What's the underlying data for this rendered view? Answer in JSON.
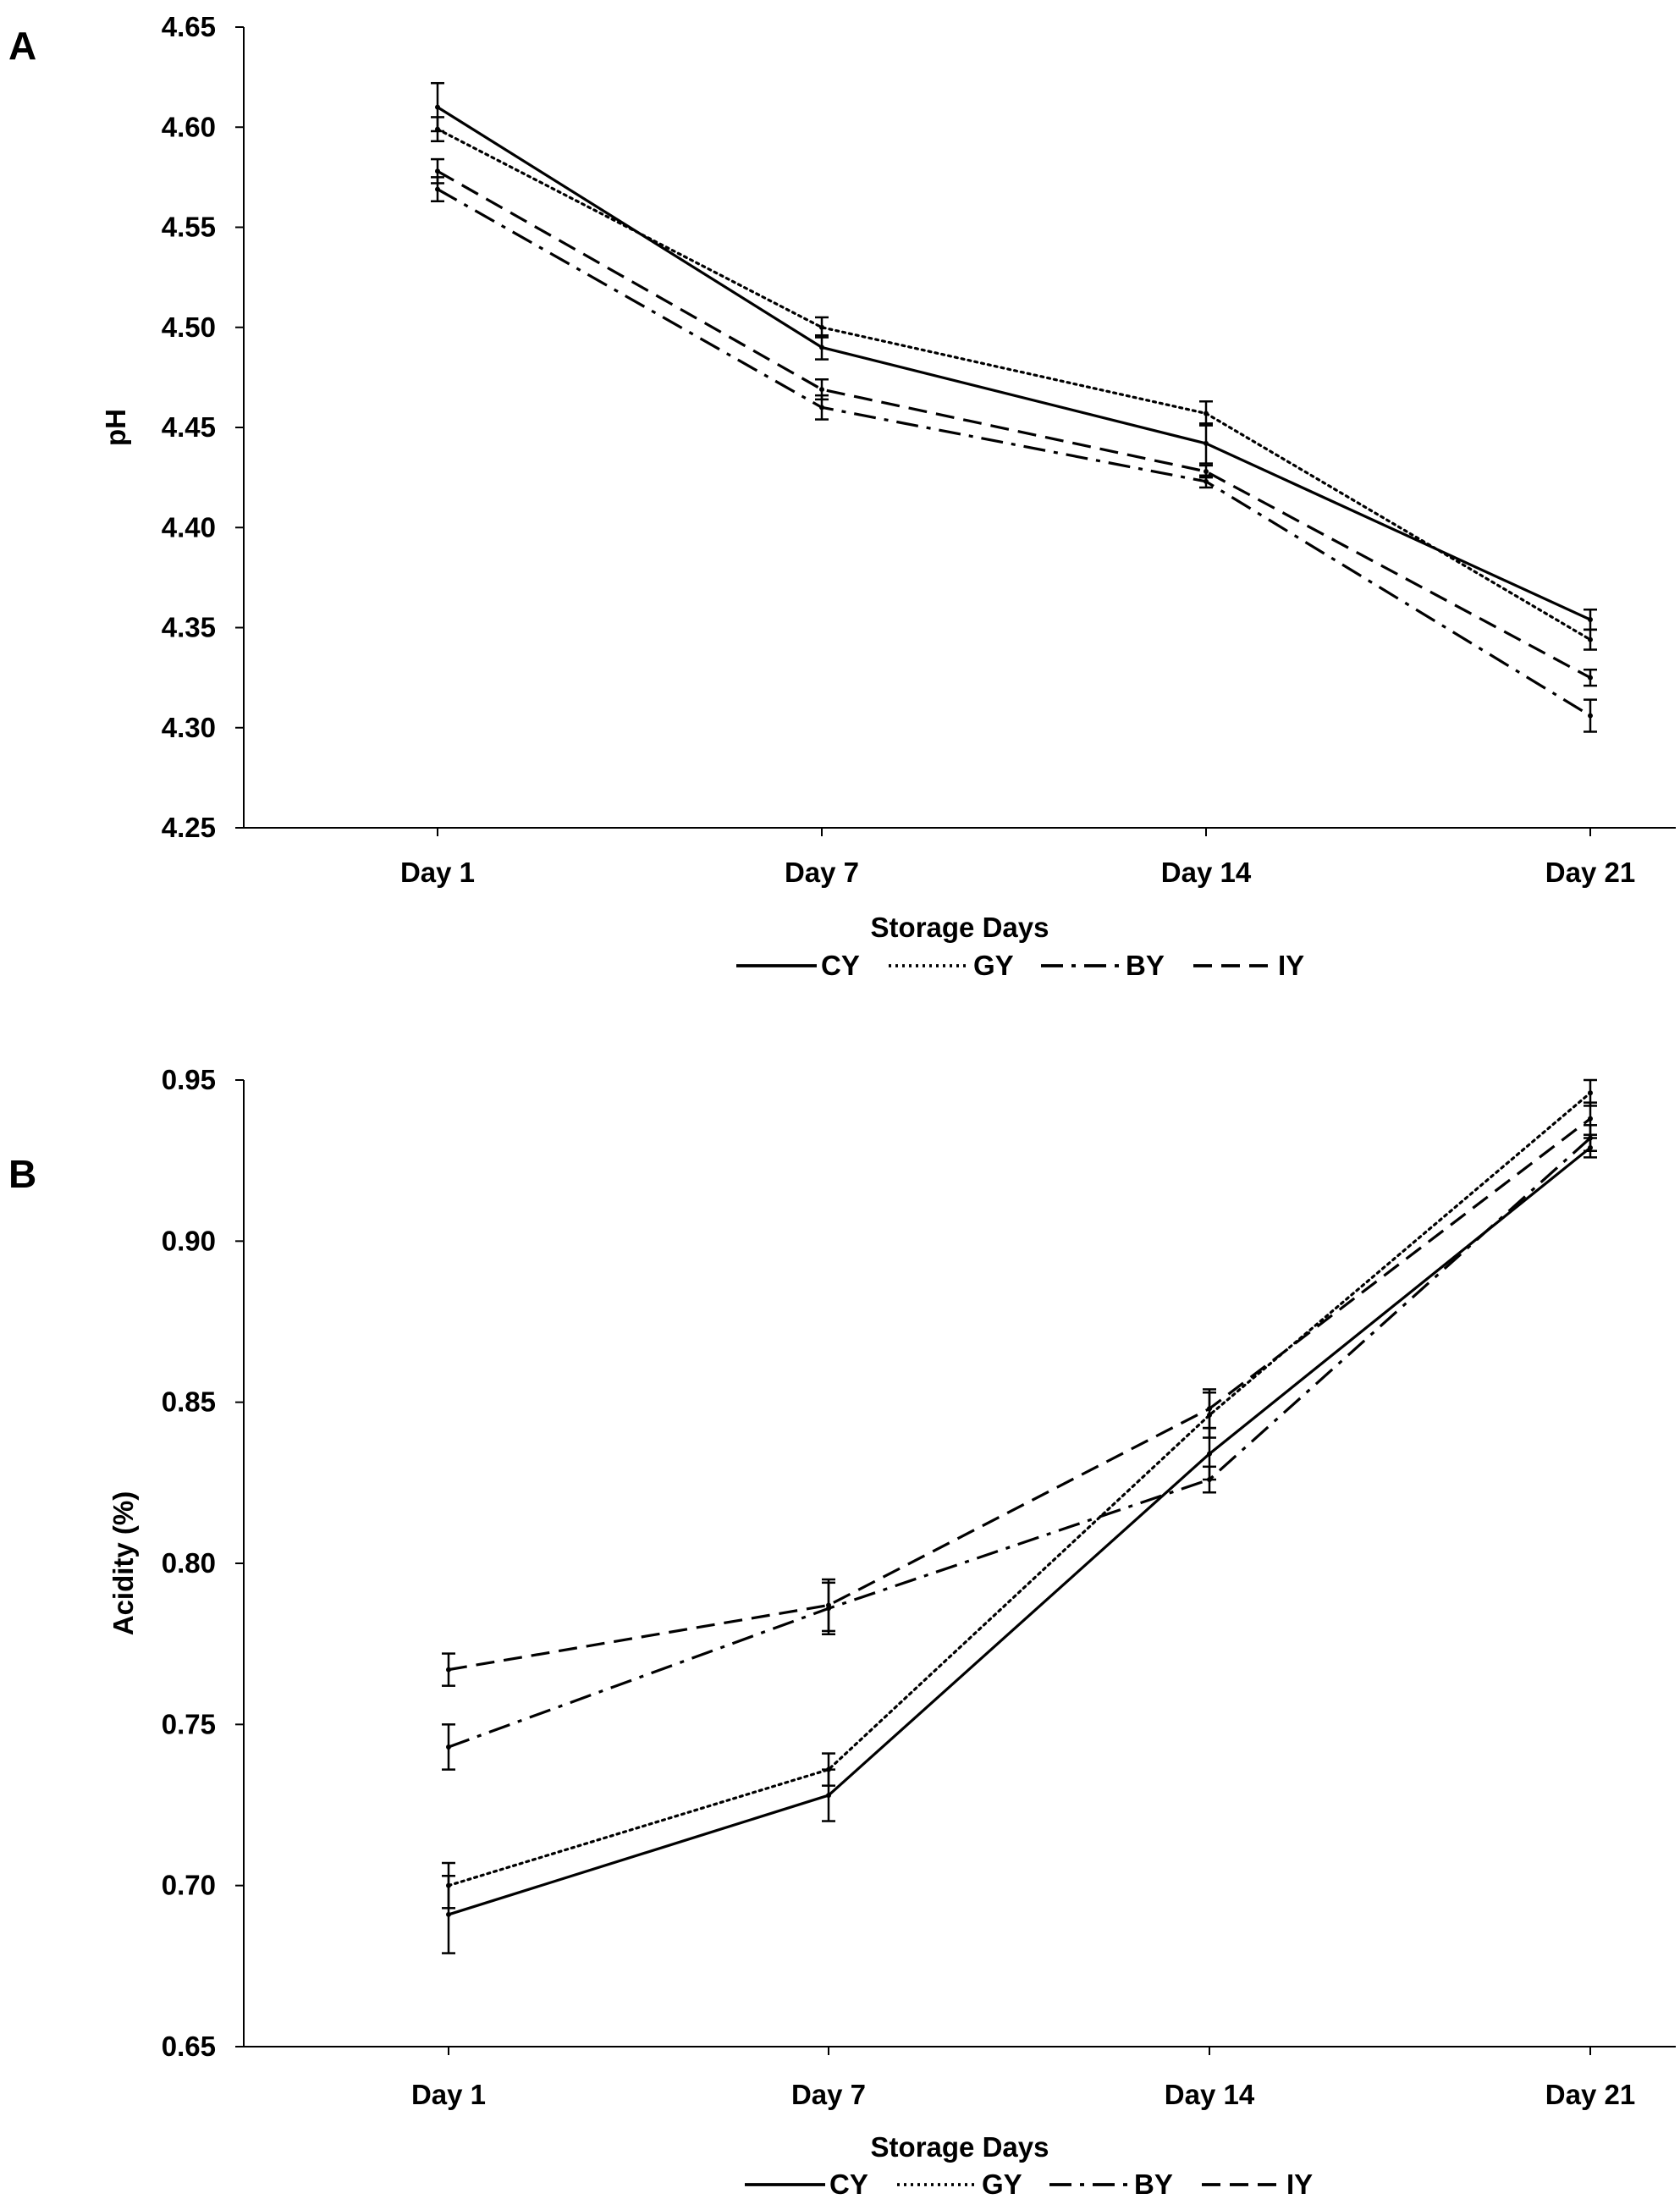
{
  "chart_data": [
    {
      "panel_label": "A",
      "type": "line",
      "title": "",
      "xlabel": "Storage Days",
      "ylabel": "pH",
      "categories": [
        "Day 1",
        "Day 7",
        "Day 14",
        "Day 21"
      ],
      "ylim": [
        4.25,
        4.65
      ],
      "yticks": [
        "4.25",
        "4.30",
        "4.35",
        "4.40",
        "4.45",
        "4.50",
        "4.55",
        "4.60",
        "4.65"
      ],
      "grid": false,
      "legend_position": "bottom",
      "error_bars": true,
      "series": [
        {
          "name": "CY",
          "style": "solid",
          "color": "#000000",
          "values": [
            4.61,
            4.49,
            4.442,
            4.354
          ],
          "errors": [
            0.012,
            0.006,
            0.01,
            0.005
          ]
        },
        {
          "name": "GY",
          "style": "dotted",
          "color": "#000000",
          "values": [
            4.599,
            4.5,
            4.457,
            4.344
          ],
          "errors": [
            0.006,
            0.005,
            0.006,
            0.005
          ]
        },
        {
          "name": "BY",
          "style": "dashdot",
          "color": "#000000",
          "values": [
            4.569,
            4.46,
            4.423,
            4.306
          ],
          "errors": [
            0.006,
            0.006,
            0.003,
            0.008
          ]
        },
        {
          "name": "IY",
          "style": "dashed",
          "color": "#000000",
          "values": [
            4.578,
            4.469,
            4.428,
            4.325
          ],
          "errors": [
            0.006,
            0.005,
            0.003,
            0.004
          ]
        }
      ]
    },
    {
      "panel_label": "B",
      "type": "line",
      "title": "",
      "xlabel": "Storage Days",
      "ylabel": "Acidity (%)",
      "categories": [
        "Day 1",
        "Day 7",
        "Day 14",
        "Day 21"
      ],
      "ylim": [
        0.65,
        0.95
      ],
      "yticks": [
        "0.65",
        "0.70",
        "0.75",
        "0.80",
        "0.85",
        "0.90",
        "0.95"
      ],
      "grid": false,
      "legend_position": "bottom",
      "error_bars": true,
      "series": [
        {
          "name": "CY",
          "style": "solid",
          "color": "#000000",
          "values": [
            0.691,
            0.728,
            0.834,
            0.929
          ],
          "errors": [
            0.012,
            0.008,
            0.008,
            0.003
          ]
        },
        {
          "name": "GY",
          "style": "dotted",
          "color": "#000000",
          "values": [
            0.7,
            0.736,
            0.846,
            0.946
          ],
          "errors": [
            0.007,
            0.005,
            0.007,
            0.004
          ]
        },
        {
          "name": "BY",
          "style": "dashdot",
          "color": "#000000",
          "values": [
            0.743,
            0.786,
            0.826,
            0.932
          ],
          "errors": [
            0.007,
            0.008,
            0.004,
            0.004
          ]
        },
        {
          "name": "IY",
          "style": "dashed",
          "color": "#000000",
          "values": [
            0.767,
            0.787,
            0.848,
            0.938
          ],
          "errors": [
            0.005,
            0.008,
            0.006,
            0.005
          ]
        }
      ]
    }
  ]
}
